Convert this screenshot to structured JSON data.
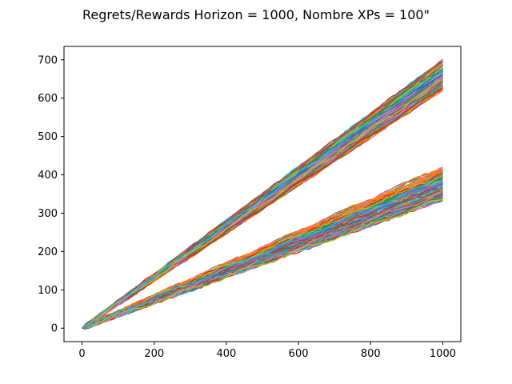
{
  "chart_data": {
    "type": "line",
    "title": "Regrets/Rewards  Horizon = 1000, Nombre XPs = 100\"",
    "xlabel": "",
    "ylabel": "",
    "xlim": [
      -50,
      1050
    ],
    "ylim": [
      -35,
      735
    ],
    "x_ticks": [
      0,
      200,
      400,
      600,
      800,
      1000
    ],
    "y_ticks": [
      0,
      100,
      200,
      300,
      400,
      500,
      600,
      700
    ],
    "grid": false,
    "legend": "none",
    "x": [
      0,
      100,
      200,
      300,
      400,
      500,
      600,
      700,
      800,
      900,
      1000
    ],
    "groups": [
      {
        "description_range_at_1000": [
          620,
          700
        ],
        "typical_slope": 0.66,
        "series_count": 100
      },
      {
        "description_range_at_1000": [
          335,
          420
        ],
        "typical_slope": 0.37,
        "series_count": 100
      }
    ],
    "series_example": [
      {
        "group": 1,
        "values": [
          0,
          70,
          140,
          210,
          278,
          345,
          412,
          478,
          545,
          608,
          670
        ]
      },
      {
        "group": 1,
        "values": [
          0,
          62,
          128,
          195,
          262,
          328,
          396,
          465,
          533,
          600,
          665
        ]
      },
      {
        "group": 1,
        "values": [
          0,
          68,
          135,
          205,
          275,
          345,
          415,
          485,
          555,
          625,
          695
        ]
      },
      {
        "group": 1,
        "values": [
          0,
          60,
          122,
          188,
          250,
          312,
          375,
          440,
          500,
          563,
          622
        ]
      },
      {
        "group": 2,
        "values": [
          0,
          40,
          78,
          115,
          150,
          185,
          220,
          255,
          290,
          325,
          365
        ]
      },
      {
        "group": 2,
        "values": [
          0,
          45,
          88,
          128,
          168,
          205,
          245,
          283,
          320,
          360,
          395
        ]
      },
      {
        "group": 2,
        "values": [
          0,
          35,
          72,
          105,
          138,
          170,
          205,
          240,
          270,
          305,
          340
        ]
      },
      {
        "group": 2,
        "values": [
          0,
          38,
          80,
          125,
          160,
          205,
          240,
          282,
          330,
          375,
          420
        ]
      }
    ]
  },
  "style": {
    "palette": [
      "#1f77b4",
      "#ff7f0e",
      "#2ca02c",
      "#d62728",
      "#9467bd",
      "#8c564b",
      "#e377c2",
      "#7f7f7f",
      "#bcbd22",
      "#17becf"
    ],
    "axis_color": "#000000"
  }
}
